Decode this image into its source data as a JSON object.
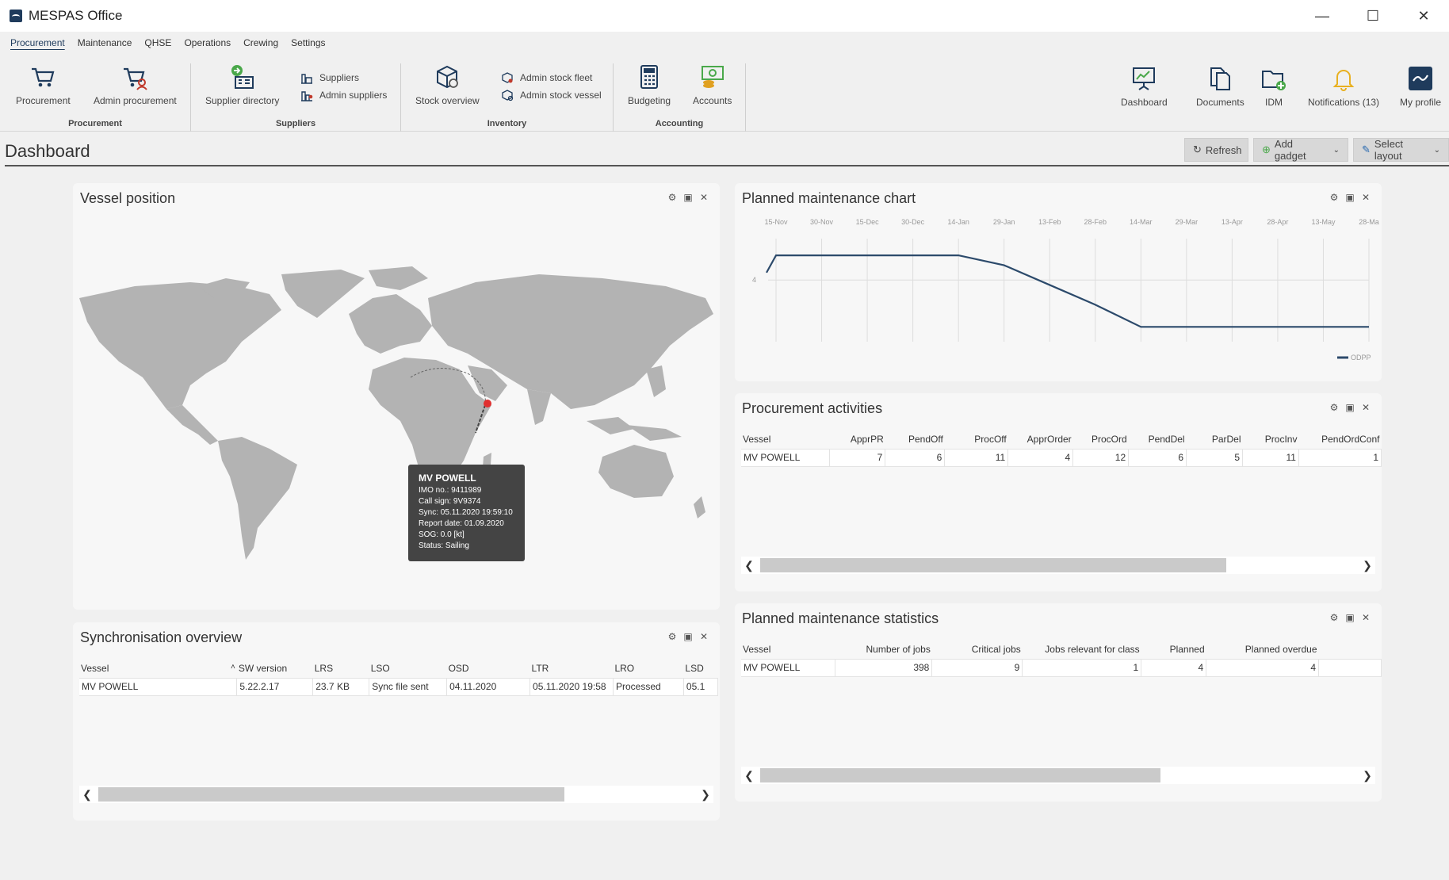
{
  "window": {
    "title": "MESPAS Office"
  },
  "menu": {
    "tabs": [
      "Procurement",
      "Maintenance",
      "QHSE",
      "Operations",
      "Crewing",
      "Settings"
    ]
  },
  "ribbon": {
    "procurement_group": {
      "label": "Procurement",
      "procurement": "Procurement",
      "admin_procurement": "Admin procurement"
    },
    "suppliers_group": {
      "label": "Suppliers",
      "supplier_directory": "Supplier directory",
      "suppliers": "Suppliers",
      "admin_suppliers": "Admin suppliers"
    },
    "inventory_group": {
      "label": "Inventory",
      "stock_overview": "Stock overview",
      "admin_stock_fleet": "Admin stock fleet",
      "admin_stock_vessel": "Admin stock vessel"
    },
    "accounting_group": {
      "label": "Accounting",
      "budgeting": "Budgeting",
      "accounts": "Accounts"
    },
    "right": {
      "dashboard": "Dashboard",
      "documents": "Documents",
      "idm": "IDM",
      "notifications": "Notifications (13)",
      "my_profile": "My profile"
    }
  },
  "page": {
    "title": "Dashboard",
    "refresh": "Refresh",
    "add_gadget": "Add gadget",
    "select_layout": "Select layout"
  },
  "vessel_position": {
    "title": "Vessel position",
    "tooltip": {
      "name": "MV POWELL",
      "imo": "IMO no.: 9411989",
      "call_sign": "Call sign: 9V9374",
      "sync": "Sync: 05.11.2020 19:59:10",
      "report_date": "Report date: 01.09.2020",
      "sog": "SOG: 0.0 [kt]",
      "status": "Status: Sailing"
    }
  },
  "sync_overview": {
    "title": "Synchronisation overview",
    "columns": [
      "Vessel",
      "SW version",
      "LRS",
      "LSO",
      "OSD",
      "LTR",
      "LRO",
      "LSD"
    ],
    "row": [
      "MV POWELL",
      "5.22.2.17",
      "23.7 KB",
      "Sync file sent",
      "04.11.2020",
      "05.11.2020 19:58",
      "Processed",
      "05.1"
    ]
  },
  "pm_chart": {
    "title": "Planned maintenance chart",
    "legend": "ODPP",
    "colors": {
      "line": "#2c4a6b"
    }
  },
  "chart_data": {
    "type": "line",
    "title": "Planned maintenance chart",
    "x": [
      "15-Nov",
      "30-Nov",
      "15-Dec",
      "30-Dec",
      "14-Jan",
      "29-Jan",
      "13-Feb",
      "28-Feb",
      "14-Mar",
      "29-Mar",
      "13-Apr",
      "28-Apr",
      "13-May",
      "28-Ma"
    ],
    "y_ticks": [
      "4"
    ],
    "series": [
      {
        "name": "ODPP",
        "values": [
          5.0,
          5.0,
          5.0,
          5.0,
          5.0,
          4.6,
          3.8,
          3.0,
          2.1,
          2.1,
          2.1,
          2.1,
          2.1,
          2.1
        ]
      }
    ],
    "ylim": [
      1.5,
      6
    ],
    "legend": "bottom-right",
    "grid": true
  },
  "procurement_activities": {
    "title": "Procurement activities",
    "columns": [
      "Vessel",
      "ApprPR",
      "PendOff",
      "ProcOff",
      "ApprOrder",
      "ProcOrd",
      "PendDel",
      "ParDel",
      "ProcInv",
      "PendOrdConf"
    ],
    "row": [
      "MV POWELL",
      "7",
      "6",
      "11",
      "4",
      "12",
      "6",
      "5",
      "11",
      "1"
    ]
  },
  "pm_statistics": {
    "title": "Planned maintenance statistics",
    "columns": [
      "Vessel",
      "Number of jobs",
      "Critical jobs",
      "Jobs relevant for class",
      "Planned",
      "Planned overdue"
    ],
    "row": [
      "MV POWELL",
      "398",
      "9",
      "1",
      "4",
      "4"
    ]
  }
}
